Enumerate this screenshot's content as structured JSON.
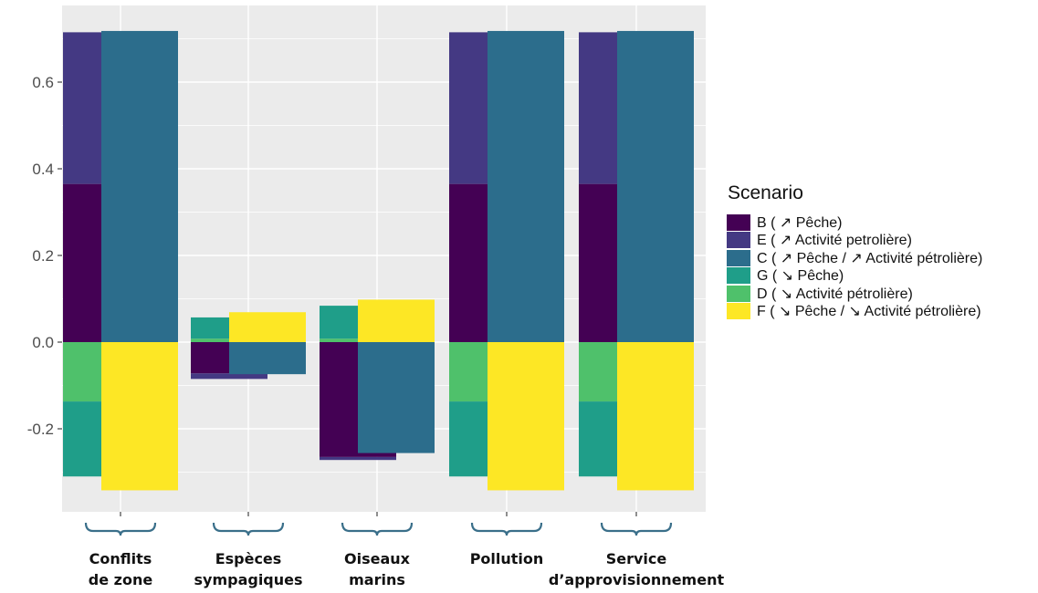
{
  "chart_data": {
    "type": "bar",
    "categories": [
      [
        "Conflits",
        "de zone"
      ],
      [
        "Espèces",
        "sympagiques"
      ],
      [
        "Oiseaux",
        "marins"
      ],
      [
        "Pollution"
      ],
      [
        "Service",
        "d’approvisionnement"
      ]
    ],
    "yticks": [
      "0.6",
      "0.4",
      "0.2",
      "0.0",
      "-0.2"
    ],
    "ylim": [
      -0.39,
      0.77
    ],
    "grid": true,
    "legend_position": "right",
    "bars": [
      [
        {
          "segments": [
            {
              "series": "B",
              "from": 0,
              "to": 0.365
            },
            {
              "series": "E",
              "from": 0.365,
              "to": 0.715
            },
            {
              "series": "D",
              "from": 0,
              "to": -0.137
            },
            {
              "series": "G",
              "from": -0.137,
              "to": -0.31
            }
          ]
        },
        {
          "segments": [
            {
              "series": "C",
              "from": 0,
              "to": 0.718
            },
            {
              "series": "F",
              "from": 0,
              "to": -0.342
            }
          ]
        }
      ],
      [
        {
          "segments": [
            {
              "series": "D",
              "from": 0,
              "to": 0.008
            },
            {
              "series": "G",
              "from": 0.008,
              "to": 0.057
            },
            {
              "series": "E",
              "from": -0.072,
              "to": -0.085
            },
            {
              "series": "B",
              "from": 0,
              "to": -0.072
            }
          ]
        },
        {
          "segments": [
            {
              "series": "F",
              "from": 0,
              "to": 0.069
            },
            {
              "series": "C",
              "from": 0,
              "to": -0.074
            }
          ]
        }
      ],
      [
        {
          "segments": [
            {
              "series": "D",
              "from": 0,
              "to": 0.008
            },
            {
              "series": "G",
              "from": 0.008,
              "to": 0.084
            },
            {
              "series": "E",
              "from": -0.265,
              "to": -0.272
            },
            {
              "series": "B",
              "from": 0,
              "to": -0.265
            }
          ]
        },
        {
          "segments": [
            {
              "series": "F",
              "from": 0,
              "to": 0.098
            },
            {
              "series": "C",
              "from": 0,
              "to": -0.256
            }
          ]
        }
      ],
      [
        {
          "segments": [
            {
              "series": "B",
              "from": 0,
              "to": 0.365
            },
            {
              "series": "E",
              "from": 0.365,
              "to": 0.715
            },
            {
              "series": "D",
              "from": 0,
              "to": -0.137
            },
            {
              "series": "G",
              "from": -0.137,
              "to": -0.31
            }
          ]
        },
        {
          "segments": [
            {
              "series": "C",
              "from": 0,
              "to": 0.718
            },
            {
              "series": "F",
              "from": 0,
              "to": -0.342
            }
          ]
        }
      ],
      [
        {
          "segments": [
            {
              "series": "B",
              "from": 0,
              "to": 0.365
            },
            {
              "series": "E",
              "from": 0.365,
              "to": 0.715
            },
            {
              "series": "D",
              "from": 0,
              "to": -0.137
            },
            {
              "series": "G",
              "from": -0.137,
              "to": -0.31
            }
          ]
        },
        {
          "segments": [
            {
              "series": "C",
              "from": 0,
              "to": 0.718
            },
            {
              "series": "F",
              "from": 0,
              "to": -0.342
            }
          ]
        }
      ]
    ],
    "series": [
      {
        "key": "B",
        "color": "#440154"
      },
      {
        "key": "E",
        "color": "#443983"
      },
      {
        "key": "C",
        "color": "#2c6d8c"
      },
      {
        "key": "G",
        "color": "#1f9e89"
      },
      {
        "key": "D",
        "color": "#4fc16b"
      },
      {
        "key": "F",
        "color": "#fde725"
      }
    ]
  },
  "legend": {
    "title": "Scenario",
    "items": [
      {
        "label": "B ( ↗ Pêche)",
        "color": "#440154"
      },
      {
        "label": "E ( ↗ Activité petrolière)",
        "color": "#443983"
      },
      {
        "label": "C ( ↗ Pêche / ↗ Activité pétrolière)",
        "color": "#2c6d8c"
      },
      {
        "label": "G ( ↘ Pêche)",
        "color": "#1f9e89"
      },
      {
        "label": "D ( ↘ Activité pétrolière)",
        "color": "#4fc16b"
      },
      {
        "label": "F ( ↘ Pêche / ↘ Activité pétrolière)",
        "color": "#fde725"
      }
    ]
  },
  "style": {
    "panel_bg": "#ebebeb",
    "grid_color": "#ffffff",
    "brace_color": "#3a6f8a"
  }
}
